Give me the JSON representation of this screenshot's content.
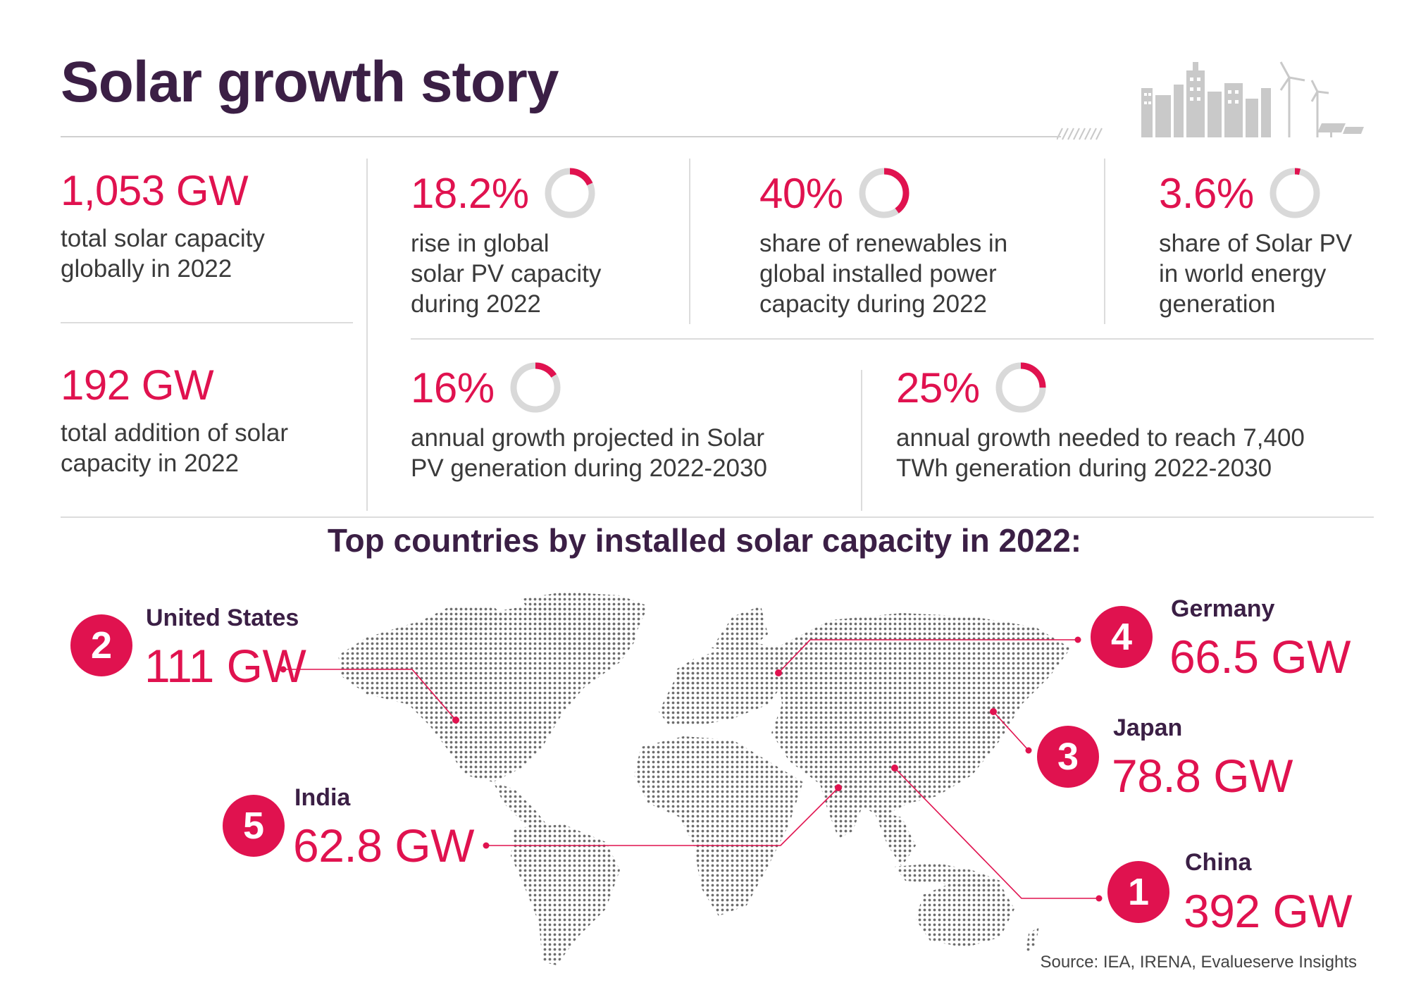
{
  "title": "Solar growth story",
  "accent_color": "#e0124f",
  "heading_color": "#3b1f45",
  "ring_track_color": "#d9d9d9",
  "stats": [
    {
      "value": "1,053 GW",
      "desc": "total solar capacity\nglobally in 2022"
    },
    {
      "value": "18.2%",
      "desc": "rise in global\nsolar PV capacity\nduring 2022",
      "ring_fraction": 0.182
    },
    {
      "value": "40%",
      "desc": "share of renewables in\nglobal installed power\ncapacity during 2022",
      "ring_fraction": 0.4
    },
    {
      "value": "3.6%",
      "desc": "share of Solar PV\nin world energy\ngeneration",
      "ring_fraction": 0.036
    },
    {
      "value": "192 GW",
      "desc": "total addition of solar\ncapacity in 2022"
    },
    {
      "value": "16%",
      "desc": "annual growth projected in Solar\nPV generation during 2022-2030",
      "ring_fraction": 0.16
    },
    {
      "value": "25%",
      "desc": "annual growth needed to reach 7,400\nTWh generation during 2022-2030",
      "ring_fraction": 0.25
    }
  ],
  "section_title": "Top countries by installed solar capacity in 2022:",
  "countries": [
    {
      "rank": "2",
      "name": "United States",
      "value": "111 GW"
    },
    {
      "rank": "4",
      "name": "Germany",
      "value": "66.5 GW"
    },
    {
      "rank": "3",
      "name": "Japan",
      "value": "78.8 GW"
    },
    {
      "rank": "5",
      "name": "India",
      "value": "62.8 GW"
    },
    {
      "rank": "1",
      "name": "China",
      "value": "392 GW"
    }
  ],
  "source": "Source: IEA, IRENA, Evalueserve Insights"
}
